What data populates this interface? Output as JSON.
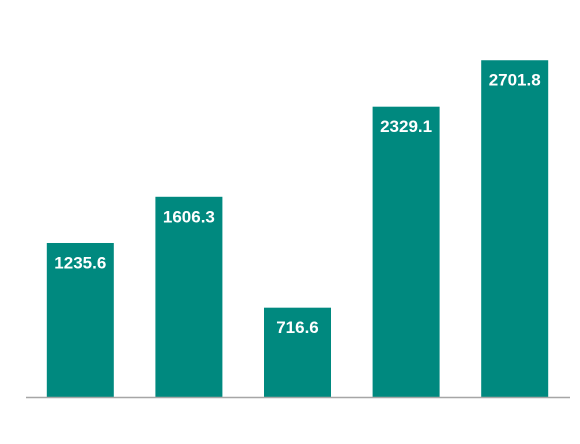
{
  "chart_data": {
    "type": "bar",
    "values": [
      1235.6,
      1606.3,
      716.6,
      2329.1,
      2701.8
    ],
    "color": "#00897f",
    "ylim": [
      0,
      2800
    ]
  }
}
